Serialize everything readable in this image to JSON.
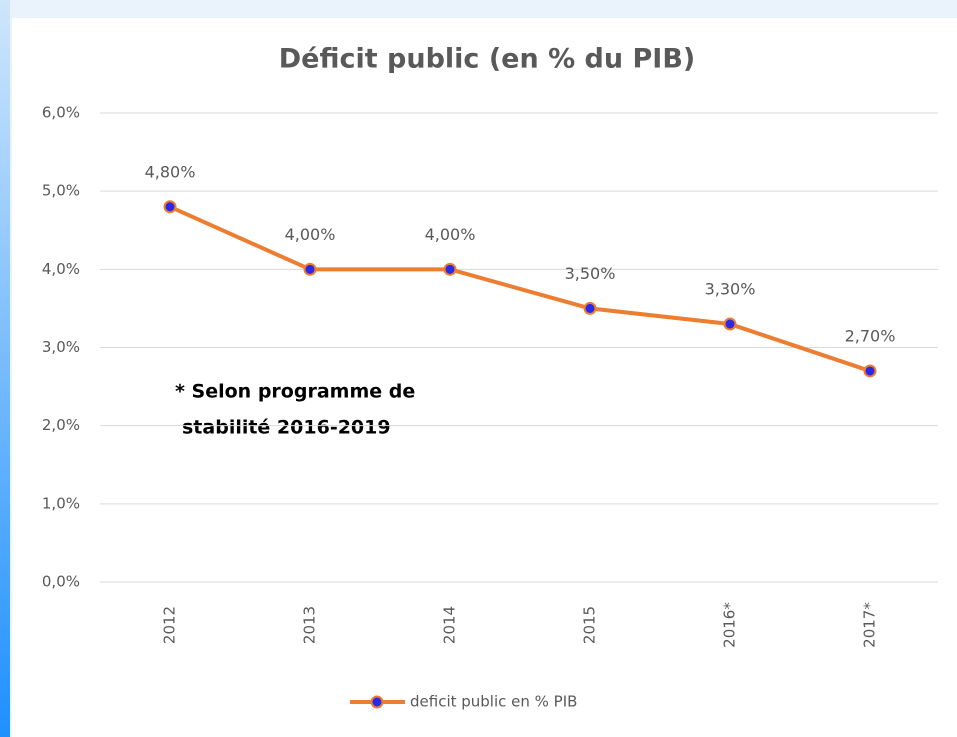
{
  "chart_data": {
    "type": "line",
    "title": "Déficit public (en % du PIB)",
    "categories": [
      "2012",
      "2013",
      "2014",
      "2015",
      "2016*",
      "2017*"
    ],
    "series": [
      {
        "name": "deficit public en % PIB",
        "color": "#ed7d31",
        "marker_color": "#2a2ae6",
        "values": [
          4.8,
          4.0,
          4.0,
          3.5,
          3.3,
          2.7
        ],
        "value_labels": [
          "4,80%",
          "4,00%",
          "4,00%",
          "3,50%",
          "3,30%",
          "2,70%"
        ]
      }
    ],
    "ylim": [
      0,
      6
    ],
    "yticks": [
      {
        "value": 0,
        "label": "0,0%"
      },
      {
        "value": 1,
        "label": "1,0%"
      },
      {
        "value": 2,
        "label": "2,0%"
      },
      {
        "value": 3,
        "label": "3,0%"
      },
      {
        "value": 4,
        "label": "4,0%"
      },
      {
        "value": 5,
        "label": "5,0%"
      },
      {
        "value": 6,
        "label": "6,0%"
      }
    ],
    "grid": true,
    "legend": "bottom",
    "annotation": [
      "* Selon programme de",
      "stabilité 2016-2019"
    ]
  }
}
